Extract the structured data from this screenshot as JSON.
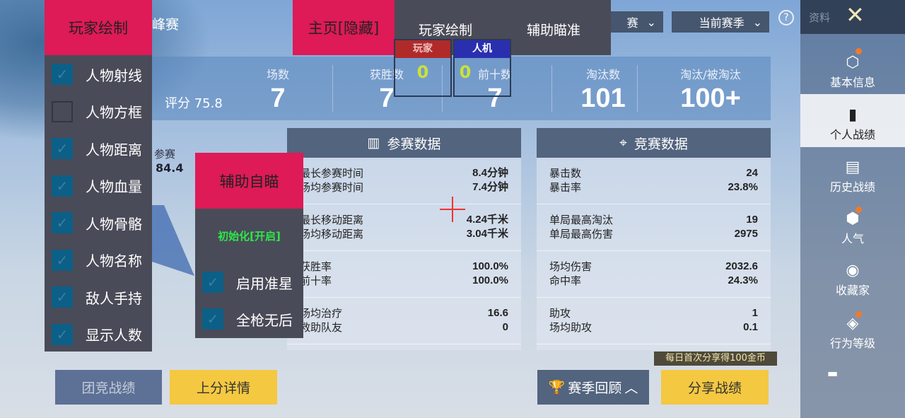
{
  "background": {
    "mode_label": "峰赛",
    "rating_label": "评分 75.8",
    "radar_label": "参赛",
    "radar_value": "84.4"
  },
  "stats": [
    {
      "label": "场数",
      "value": "7"
    },
    {
      "label": "获胜数",
      "value": "7"
    },
    {
      "label": "前十数",
      "value": "7"
    },
    {
      "label": "淘汰数",
      "value": "101"
    },
    {
      "label": "淘汰/被淘汰",
      "value": "100+"
    }
  ],
  "filters": {
    "mode": "赛",
    "season": "当前赛季"
  },
  "header_right": {
    "profile_label": "资料"
  },
  "card_participation": {
    "title": "参赛数据",
    "rows": [
      [
        [
          "最长参赛时间",
          "8.4分钟"
        ],
        [
          "场均参赛时间",
          "7.4分钟"
        ]
      ],
      [
        [
          "最长移动距离",
          "4.24千米"
        ],
        [
          "场均移动距离",
          "3.04千米"
        ]
      ],
      [
        [
          "获胜率",
          "100.0%"
        ],
        [
          "前十率",
          "100.0%"
        ]
      ],
      [
        [
          "场均治疗",
          "16.6"
        ],
        [
          "救助队友",
          "0"
        ]
      ]
    ]
  },
  "card_competition": {
    "title": "竞赛数据",
    "rows": [
      [
        [
          "暴击数",
          "24"
        ],
        [
          "暴击率",
          "23.8%"
        ]
      ],
      [
        [
          "单局最高淘汰",
          "19"
        ],
        [
          "单局最高伤害",
          "2975"
        ]
      ],
      [
        [
          "场均伤害",
          "2032.6"
        ],
        [
          "命中率",
          "24.3%"
        ]
      ],
      [
        [
          "助攻",
          "1"
        ],
        [
          "场均助攻",
          "0.1"
        ]
      ]
    ]
  },
  "sidebar": {
    "items": [
      {
        "label": "基本信息",
        "icon": "user-badge-icon"
      },
      {
        "label": "个人战绩",
        "icon": "chart-doc-icon",
        "active": true
      },
      {
        "label": "历史战绩",
        "icon": "history-doc-icon"
      },
      {
        "label": "人气",
        "icon": "popularity-icon"
      },
      {
        "label": "收藏家",
        "icon": "collector-icon"
      },
      {
        "label": "行为等级",
        "icon": "behavior-icon"
      }
    ]
  },
  "bottom": {
    "team_record": "团竞战绩",
    "rank_details": "上分详情",
    "season_review": "赛季回顾",
    "share": "分享战绩",
    "share_tip": "每日首次分享得100金币"
  },
  "overlay": {
    "player_draw_title": "玩家绘制",
    "home_hidden": "主页[隐藏]",
    "tabs": [
      "玩家绘制",
      "辅助瞄准"
    ],
    "counters": [
      {
        "label": "玩家",
        "value": "0",
        "color": "#b02a2a"
      },
      {
        "label": "人机",
        "value": "0",
        "color": "#2a2fb0"
      }
    ],
    "esp_options": [
      {
        "label": "人物射线",
        "checked": true
      },
      {
        "label": "人物方框",
        "checked": false
      },
      {
        "label": "人物距离",
        "checked": true
      },
      {
        "label": "人物血量",
        "checked": true
      },
      {
        "label": "人物骨骼",
        "checked": true
      },
      {
        "label": "人物名称",
        "checked": true
      },
      {
        "label": "敌人手持",
        "checked": true
      },
      {
        "label": "显示人数",
        "checked": true
      }
    ],
    "aim_title": "辅助自瞄",
    "aim_status": "初始化[开启]",
    "aim_options": [
      {
        "label": "启用准星",
        "checked": true
      },
      {
        "label": "全枪无后",
        "checked": true
      }
    ]
  },
  "colors": {
    "accent_pink": "#de1a57",
    "panel_dark": "#4a4b58",
    "checkbox": "#0c5f86",
    "status_green": "#2ee64a",
    "button_yellow": "#f5c842"
  }
}
